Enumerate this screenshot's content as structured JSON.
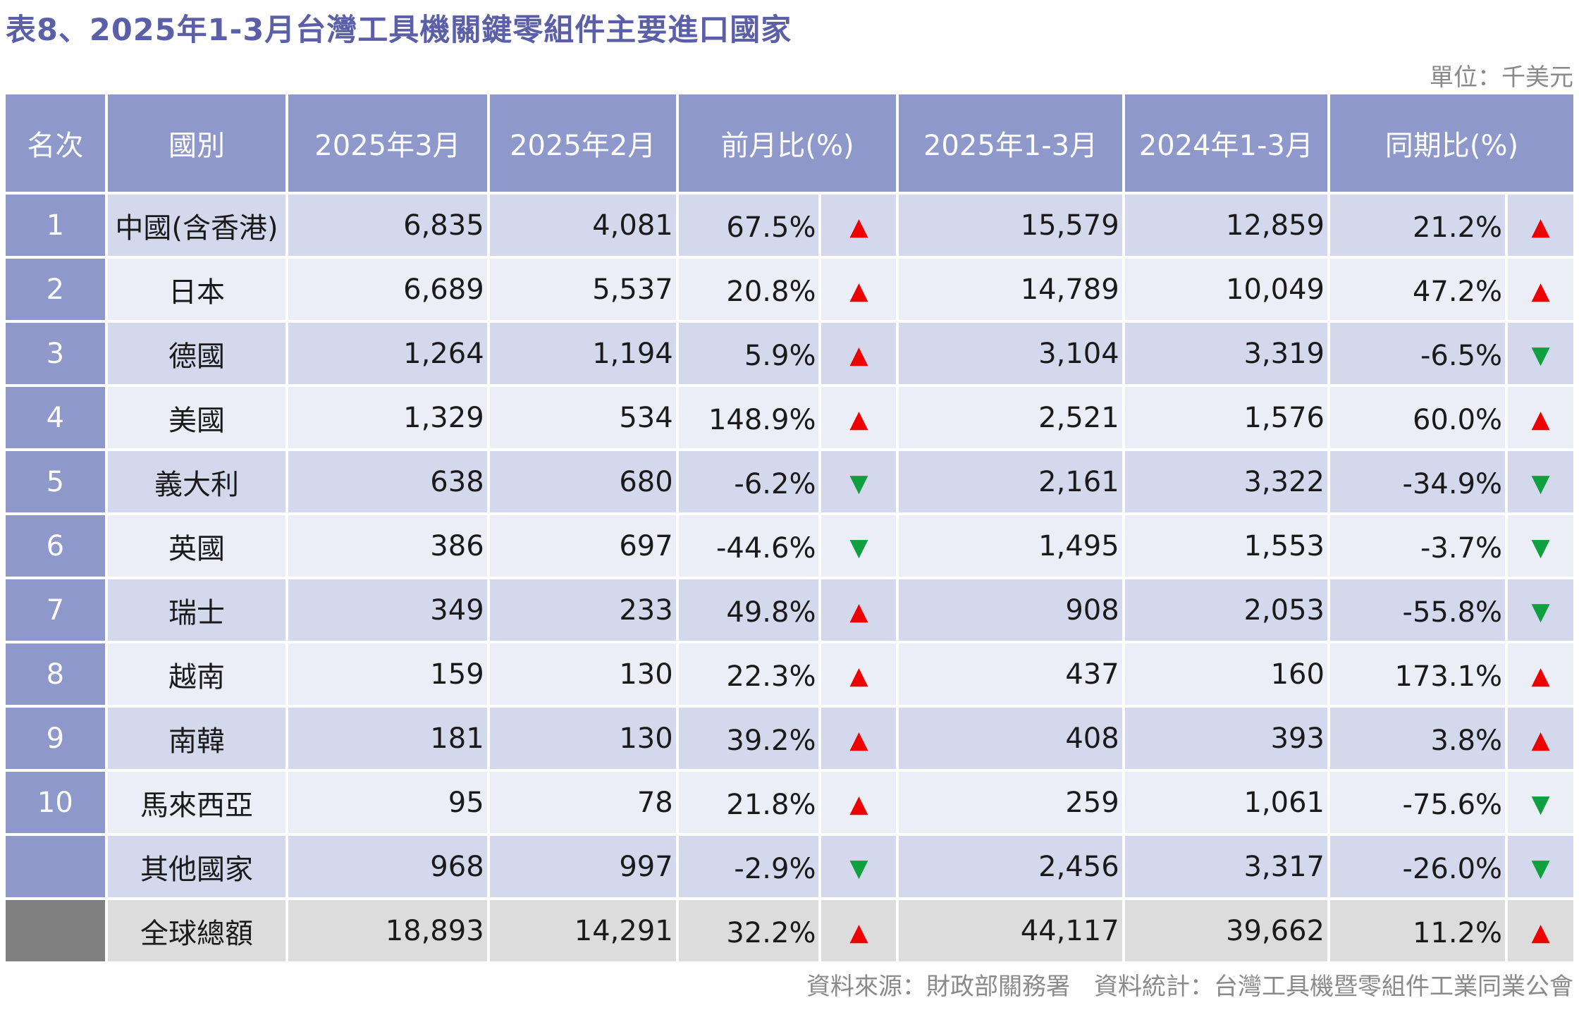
{
  "title": "表8、2025年1-3月台灣工具機關鍵零組件主要進口國家",
  "unit": "單位：千美元",
  "source": "資料來源：財政部關務署　資料統計：台灣工具機暨零組件工業同業公會",
  "columns": {
    "rank": "名次",
    "country": "國別",
    "mar2025": "2025年3月",
    "feb2025": "2025年2月",
    "mom": "前月比(%)",
    "q1_2025": "2025年1-3月",
    "q1_2024": "2024年1-3月",
    "yoy": "同期比(%)"
  },
  "colors": {
    "header_bg": "#8f98cb",
    "up": "#ee0000",
    "down": "#10a040",
    "title": "#5b5fa8"
  },
  "rows": [
    {
      "rank": "1",
      "country": "中國(含香港)",
      "mar2025": "6,835",
      "feb2025": "4,081",
      "mom": "67.5%",
      "mom_dir": "up",
      "q1_2025": "15,579",
      "q1_2024": "12,859",
      "yoy": "21.2%",
      "yoy_dir": "up"
    },
    {
      "rank": "2",
      "country": "日本",
      "mar2025": "6,689",
      "feb2025": "5,537",
      "mom": "20.8%",
      "mom_dir": "up",
      "q1_2025": "14,789",
      "q1_2024": "10,049",
      "yoy": "47.2%",
      "yoy_dir": "up"
    },
    {
      "rank": "3",
      "country": "德國",
      "mar2025": "1,264",
      "feb2025": "1,194",
      "mom": "5.9%",
      "mom_dir": "up",
      "q1_2025": "3,104",
      "q1_2024": "3,319",
      "yoy": "-6.5%",
      "yoy_dir": "down"
    },
    {
      "rank": "4",
      "country": "美國",
      "mar2025": "1,329",
      "feb2025": "534",
      "mom": "148.9%",
      "mom_dir": "up",
      "q1_2025": "2,521",
      "q1_2024": "1,576",
      "yoy": "60.0%",
      "yoy_dir": "up"
    },
    {
      "rank": "5",
      "country": "義大利",
      "mar2025": "638",
      "feb2025": "680",
      "mom": "-6.2%",
      "mom_dir": "down",
      "q1_2025": "2,161",
      "q1_2024": "3,322",
      "yoy": "-34.9%",
      "yoy_dir": "down"
    },
    {
      "rank": "6",
      "country": "英國",
      "mar2025": "386",
      "feb2025": "697",
      "mom": "-44.6%",
      "mom_dir": "down",
      "q1_2025": "1,495",
      "q1_2024": "1,553",
      "yoy": "-3.7%",
      "yoy_dir": "down"
    },
    {
      "rank": "7",
      "country": "瑞士",
      "mar2025": "349",
      "feb2025": "233",
      "mom": "49.8%",
      "mom_dir": "up",
      "q1_2025": "908",
      "q1_2024": "2,053",
      "yoy": "-55.8%",
      "yoy_dir": "down"
    },
    {
      "rank": "8",
      "country": "越南",
      "mar2025": "159",
      "feb2025": "130",
      "mom": "22.3%",
      "mom_dir": "up",
      "q1_2025": "437",
      "q1_2024": "160",
      "yoy": "173.1%",
      "yoy_dir": "up"
    },
    {
      "rank": "9",
      "country": "南韓",
      "mar2025": "181",
      "feb2025": "130",
      "mom": "39.2%",
      "mom_dir": "up",
      "q1_2025": "408",
      "q1_2024": "393",
      "yoy": "3.8%",
      "yoy_dir": "up"
    },
    {
      "rank": "10",
      "country": "馬來西亞",
      "mar2025": "95",
      "feb2025": "78",
      "mom": "21.8%",
      "mom_dir": "up",
      "q1_2025": "259",
      "q1_2024": "1,061",
      "yoy": "-75.6%",
      "yoy_dir": "down"
    },
    {
      "rank": "",
      "country": "其他國家",
      "mar2025": "968",
      "feb2025": "997",
      "mom": "-2.9%",
      "mom_dir": "down",
      "q1_2025": "2,456",
      "q1_2024": "3,317",
      "yoy": "-26.0%",
      "yoy_dir": "down"
    },
    {
      "rank": "",
      "country": "全球總額",
      "mar2025": "18,893",
      "feb2025": "14,291",
      "mom": "32.2%",
      "mom_dir": "up",
      "q1_2025": "44,117",
      "q1_2024": "39,662",
      "yoy": "11.2%",
      "yoy_dir": "up"
    }
  ]
}
